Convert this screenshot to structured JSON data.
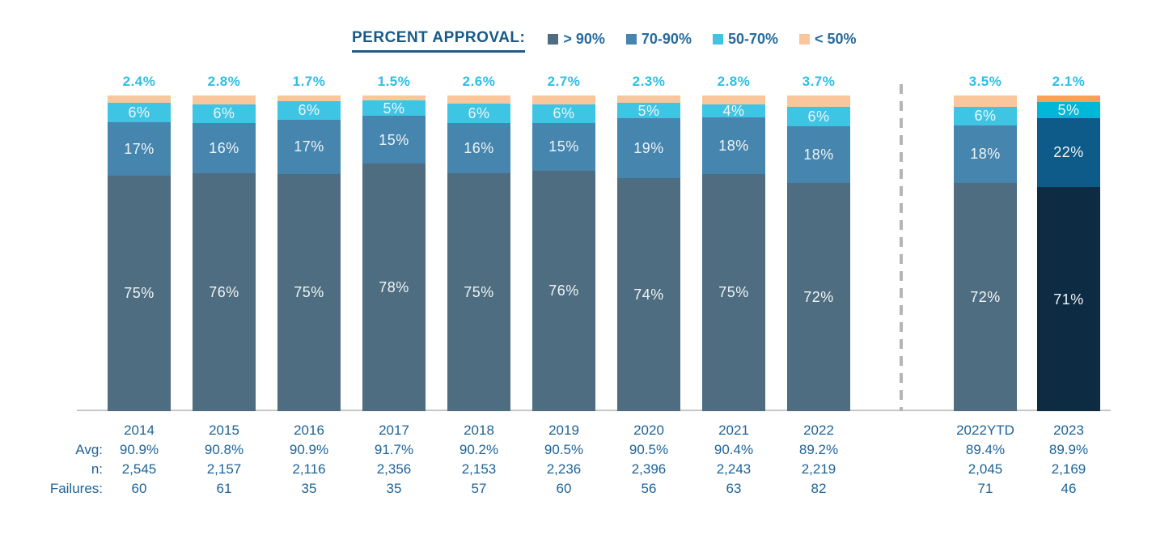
{
  "legend": {
    "title": "PERCENT APPROVAL:",
    "items": [
      {
        "name": "gt90",
        "label": "> 90%",
        "color": "#4e6d80"
      },
      {
        "name": "b7090",
        "label": "70-90%",
        "color": "#4685ae"
      },
      {
        "name": "b5070",
        "label": "50-70%",
        "color": "#3fc5e4"
      },
      {
        "name": "lt50",
        "label": "< 50%",
        "color": "#fac79c"
      }
    ]
  },
  "stats_labels": {
    "avg": "Avg:",
    "n": "n:",
    "failures": "Failures:"
  },
  "chart_data": {
    "type": "bar",
    "stacked": true,
    "unit": "percent",
    "title": "PERCENT APPROVAL:",
    "legend_position": "top",
    "grid": false,
    "categories": [
      "2014",
      "2015",
      "2016",
      "2017",
      "2018",
      "2019",
      "2020",
      "2021",
      "2022",
      "2022YTD",
      "2023"
    ],
    "series": [
      {
        "name": "> 90%",
        "values": [
          75,
          76,
          75,
          78,
          75,
          76,
          74,
          75,
          72,
          72,
          71
        ]
      },
      {
        "name": "70-90%",
        "values": [
          17,
          16,
          17,
          15,
          16,
          15,
          19,
          18,
          18,
          18,
          22
        ]
      },
      {
        "name": "50-70%",
        "values": [
          6,
          6,
          6,
          5,
          6,
          6,
          5,
          4,
          6,
          6,
          5
        ]
      },
      {
        "name": "< 50%",
        "values": [
          2.4,
          2.8,
          1.7,
          1.5,
          2.6,
          2.7,
          2.3,
          2.8,
          3.7,
          3.5,
          2.1
        ]
      }
    ],
    "top_labels": [
      "2.4%",
      "2.8%",
      "1.7%",
      "1.5%",
      "2.6%",
      "2.7%",
      "2.3%",
      "2.8%",
      "3.7%",
      "3.5%",
      "2.1%"
    ],
    "avg": [
      "90.9%",
      "90.8%",
      "90.9%",
      "91.7%",
      "90.2%",
      "90.5%",
      "90.5%",
      "90.4%",
      "89.2%",
      "89.4%",
      "89.9%"
    ],
    "n": [
      "2,545",
      "2,157",
      "2,116",
      "2,356",
      "2,153",
      "2,236",
      "2,396",
      "2,243",
      "2,219",
      "2,045",
      "2,169"
    ],
    "failures": [
      "60",
      "61",
      "35",
      "35",
      "57",
      "60",
      "56",
      "63",
      "82",
      "71",
      "46"
    ],
    "divider_after_category": "2022",
    "highlight_category": "2023",
    "palette": {
      "gt90": "#4e6d80",
      "b7090": "#4685ae",
      "b5070": "#3fc5e4",
      "lt50": "#fac79c"
    },
    "highlight_palette": {
      "gt90": "#0d2b42",
      "b7090": "#0e5a88",
      "b5070": "#00b7d8",
      "lt50": "#f9a158"
    },
    "top_label_color": "#2cbfe4",
    "text_color": "#1e6397"
  }
}
